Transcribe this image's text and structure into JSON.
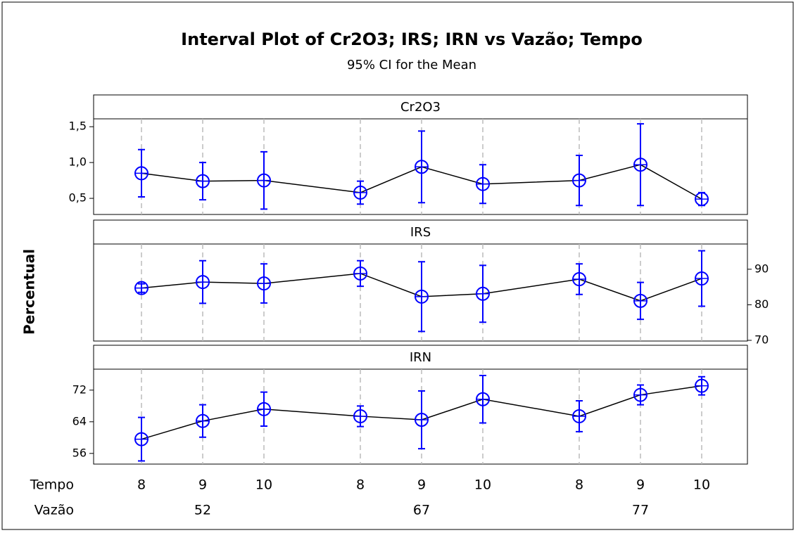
{
  "chart_data": {
    "type": "interval",
    "title": "Interval Plot of Cr2O3; IRS; IRN vs Vazão; Tempo",
    "subtitle": "95% CI for the Mean",
    "y_label": "Percentual",
    "x_labels": [
      "Tempo",
      "Vazão"
    ],
    "categories": [
      "8",
      "9",
      "10",
      "8",
      "9",
      "10",
      "8",
      "9",
      "10"
    ],
    "groups": [
      "52",
      "67",
      "77"
    ],
    "color": "#0000ff",
    "line_color": "#000000",
    "panels": [
      {
        "name": "Cr2O3",
        "axis_side": "left",
        "values": [
          0.85,
          0.74,
          0.75,
          0.58,
          0.94,
          0.7,
          0.75,
          0.97,
          0.49
        ],
        "errors": [
          0.33,
          0.26,
          0.4,
          0.16,
          0.5,
          0.27,
          0.35,
          0.57,
          0.09
        ],
        "ylim": [
          0.275,
          1.61
        ],
        "yticks": [
          {
            "value": 0.5,
            "label": "0,5"
          },
          {
            "value": 1.0,
            "label": "1,0"
          },
          {
            "value": 1.5,
            "label": "1,5"
          }
        ]
      },
      {
        "name": "IRS",
        "axis_side": "right",
        "values": [
          84.7,
          86.4,
          86.0,
          88.8,
          82.3,
          83.1,
          87.2,
          81.1,
          87.4
        ],
        "errors": [
          1.2,
          6.0,
          5.5,
          3.6,
          9.8,
          8.0,
          4.3,
          5.2,
          7.8
        ],
        "ylim": [
          69.8,
          97.1
        ],
        "yticks": [
          70,
          80,
          90
        ]
      },
      {
        "name": "IRN",
        "axis_side": "left",
        "values": [
          59.6,
          64.2,
          67.2,
          65.4,
          64.5,
          69.7,
          65.4,
          70.8,
          73.1
        ],
        "errors": [
          5.5,
          4.1,
          4.3,
          2.6,
          7.3,
          6.0,
          3.9,
          2.5,
          2.3
        ],
        "ylim": [
          53.3,
          77.3
        ],
        "yticks": [
          56,
          64,
          72
        ]
      }
    ]
  }
}
